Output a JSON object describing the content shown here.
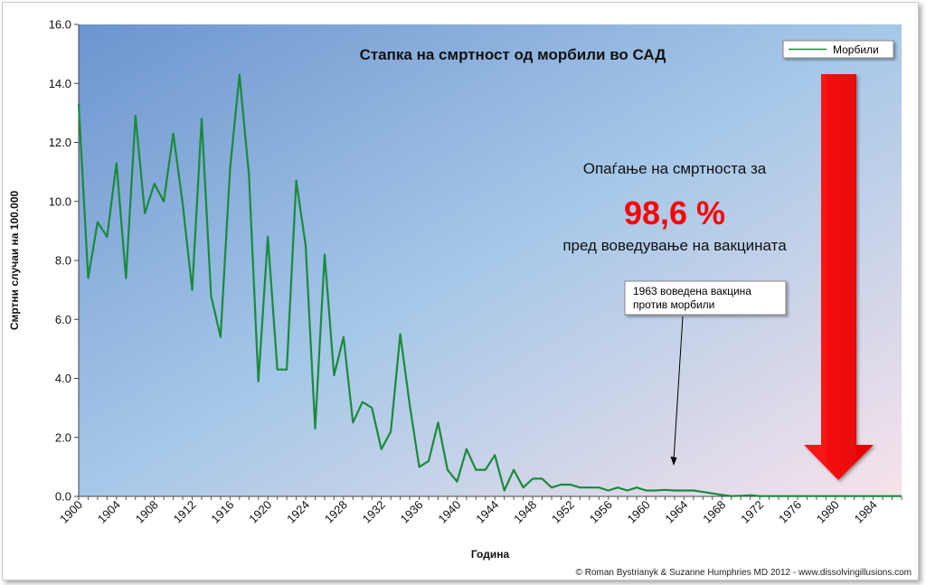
{
  "chart_data": {
    "type": "line",
    "title": "Стапка на смртност од морбили во САД",
    "xlabel": "Година",
    "ylabel": "Смртни случаи на 100.000",
    "xlim": [
      1900,
      1987
    ],
    "ylim": [
      0,
      16
    ],
    "y_ticks": [
      "0.0",
      "2.0",
      "4.0",
      "6.0",
      "8.0",
      "10.0",
      "12.0",
      "14.0",
      "16.0"
    ],
    "x_ticks": [
      "1900",
      "1904",
      "1908",
      "1912",
      "1916",
      "1920",
      "1924",
      "1928",
      "1932",
      "1936",
      "1940",
      "1944",
      "1948",
      "1952",
      "1956",
      "1960",
      "1964",
      "1968",
      "1972",
      "1976",
      "1980",
      "1984"
    ],
    "legend_position": "top-right",
    "grid": false,
    "series": [
      {
        "name": "Морбили",
        "color": "#1a8a3c",
        "x": [
          1900,
          1901,
          1902,
          1903,
          1904,
          1905,
          1906,
          1907,
          1908,
          1909,
          1910,
          1911,
          1912,
          1913,
          1914,
          1915,
          1916,
          1917,
          1918,
          1919,
          1920,
          1921,
          1922,
          1923,
          1924,
          1925,
          1926,
          1927,
          1928,
          1929,
          1930,
          1931,
          1932,
          1933,
          1934,
          1935,
          1936,
          1937,
          1938,
          1939,
          1940,
          1941,
          1942,
          1943,
          1944,
          1945,
          1946,
          1947,
          1948,
          1949,
          1950,
          1951,
          1952,
          1953,
          1954,
          1955,
          1956,
          1957,
          1958,
          1959,
          1960,
          1961,
          1962,
          1963,
          1964,
          1965,
          1966,
          1967,
          1968,
          1969,
          1970,
          1971,
          1972,
          1973,
          1974,
          1975,
          1976,
          1977,
          1978,
          1979,
          1980,
          1981,
          1982,
          1983,
          1984,
          1985,
          1986,
          1987
        ],
        "values": [
          13.3,
          7.4,
          9.3,
          8.8,
          11.3,
          7.4,
          12.9,
          9.6,
          10.6,
          10.0,
          12.3,
          9.9,
          7.0,
          12.8,
          6.8,
          5.4,
          11.1,
          14.3,
          10.9,
          3.9,
          8.8,
          4.3,
          4.3,
          10.7,
          8.5,
          2.3,
          8.2,
          4.1,
          5.4,
          2.5,
          3.2,
          3.0,
          1.6,
          2.2,
          5.5,
          3.1,
          1.0,
          1.2,
          2.5,
          0.9,
          0.5,
          1.6,
          0.9,
          0.9,
          1.4,
          0.2,
          0.9,
          0.3,
          0.6,
          0.6,
          0.3,
          0.4,
          0.4,
          0.3,
          0.3,
          0.3,
          0.2,
          0.3,
          0.2,
          0.3,
          0.2,
          0.2,
          0.22,
          0.2,
          0.2,
          0.2,
          0.15,
          0.1,
          0.05,
          0.01,
          0.02,
          0.04,
          0.01,
          0.01,
          0.01,
          0.01,
          0.01,
          0.01,
          0.01,
          0.01,
          0.01,
          0.01,
          0.01,
          0.01,
          0.01,
          0.01,
          0.01,
          0.01
        ]
      }
    ],
    "annotations": {
      "decline_intro": "Опаѓање на смртноста за",
      "decline_value": "98,6 %",
      "decline_outro": "пред воведување на вакцината",
      "vaccine_note_line1": "1963 воведена вакцина",
      "vaccine_note_line2": "против морбили"
    },
    "copyright": "© Roman Bystrianyk & Suzanne Humphries MD 2012 - www.dissolvingillusions.com",
    "colors": {
      "plot_bg_start": "#6f97cf",
      "plot_bg_end": "#f6e3ea",
      "line": "#1a8a3c",
      "arrow": "#ff0000",
      "highlight": "#ff0000"
    }
  }
}
